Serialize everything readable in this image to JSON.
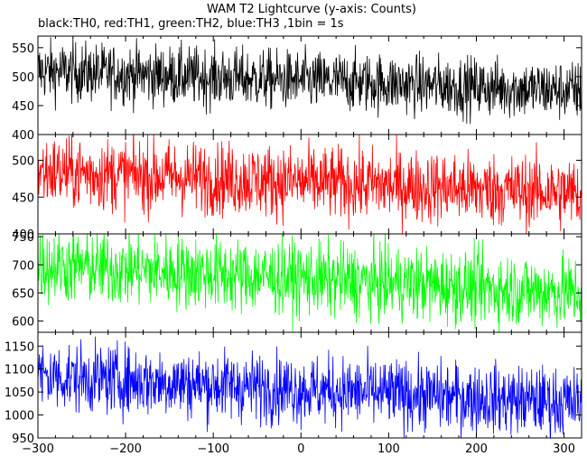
{
  "title": "WAM T2 Lightcurve (y-axis: Counts)",
  "subtitle": "black:TH0, red:TH1, green:TH2, blue:TH3 ,1bin = 1s",
  "chart_data": [
    {
      "type": "line",
      "series": [
        {
          "name": "TH0",
          "color": "#000000",
          "mean_start": 510,
          "mean_end": 475,
          "jump_at": 35,
          "jump_to": 492,
          "noise": 26
        }
      ],
      "xlim": [
        -300,
        320
      ],
      "ylim": [
        400,
        570
      ],
      "yticks": [
        400,
        450,
        500,
        550
      ],
      "ytick_labels": [
        "400",
        "450",
        "500",
        "550"
      ],
      "grid": false
    },
    {
      "type": "line",
      "series": [
        {
          "name": "TH1",
          "color": "#ff0000",
          "mean_start": 485,
          "mean_end": 455,
          "jump_at": null,
          "jump_to": null,
          "noise": 25
        }
      ],
      "xlim": [
        -300,
        320
      ],
      "ylim": [
        400,
        535
      ],
      "yticks": [
        400,
        450,
        500
      ],
      "ytick_labels": [
        "400",
        "450",
        "500"
      ],
      "grid": false
    },
    {
      "type": "line",
      "series": [
        {
          "name": "TH2",
          "color": "#00ff00",
          "mean_start": 700,
          "mean_end": 650,
          "jump_at": null,
          "jump_to": null,
          "noise": 33
        }
      ],
      "xlim": [
        -300,
        320
      ],
      "ylim": [
        580,
        755
      ],
      "yticks": [
        600,
        650,
        700,
        750
      ],
      "ytick_labels": [
        "600",
        "650",
        "700",
        "750"
      ],
      "grid": false
    },
    {
      "type": "line",
      "series": [
        {
          "name": "TH3",
          "color": "#0000ff",
          "mean_start": 1085,
          "mean_end": 1025,
          "jump_at": null,
          "jump_to": null,
          "noise": 38
        }
      ],
      "xlim": [
        -300,
        320
      ],
      "xticks": [
        -300,
        -200,
        -100,
        0,
        100,
        200,
        300
      ],
      "xtick_labels": [
        "−300",
        "−200",
        "−100",
        "0",
        "100",
        "200",
        "300"
      ],
      "ylim": [
        950,
        1180
      ],
      "yticks": [
        950,
        1000,
        1050,
        1100,
        1150
      ],
      "ytick_labels": [
        "950",
        "1000",
        "1050",
        "1100",
        "1150"
      ],
      "grid": false
    }
  ]
}
